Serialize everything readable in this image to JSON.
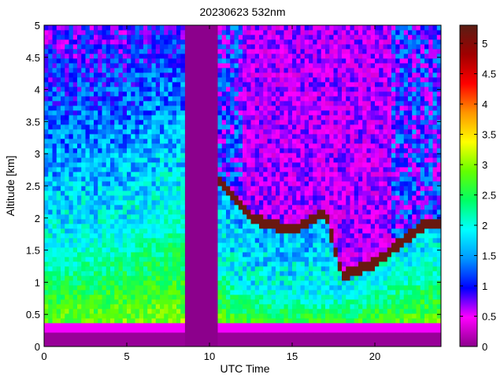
{
  "chart_data": {
    "type": "heatmap",
    "title": "20230623 532nm",
    "xlabel": "UTC Time",
    "ylabel": "Altitude [km]",
    "xlim": [
      0,
      24
    ],
    "ylim": [
      0,
      5
    ],
    "x_ticks": [
      "0",
      "5",
      "10",
      "15",
      "20"
    ],
    "y_ticks": [
      "0",
      "0.5",
      "1",
      "1.5",
      "2",
      "2.5",
      "3",
      "3.5",
      "4",
      "4.5",
      "5"
    ],
    "colorbar": {
      "min": 0,
      "max": 5.3,
      "ticks": [
        "0",
        "0.5",
        "1",
        "1.5",
        "2",
        "2.5",
        "3",
        "3.5",
        "4",
        "4.5",
        "5"
      ],
      "colormap": [
        "#8c008c",
        "#ff00ff",
        "#0000ff",
        "#0096ff",
        "#00ffff",
        "#00ff64",
        "#64ff00",
        "#ffff00",
        "#ff9600",
        "#ff0000",
        "#a00000",
        "#5a1e14"
      ]
    },
    "no_data_intervals_utc": [
      [
        8.4,
        9.8
      ],
      [
        9.8,
        10.4
      ]
    ],
    "features": {
      "surface_layer_top_km": 0.35,
      "aerosol_layer_top_km": {
        "0": 1.7,
        "5": 2.0,
        "8": 2.5,
        "12": 1.0,
        "18": 0.9,
        "23": 1.5
      },
      "cloud_base_km": {
        "10.5": 2.6,
        "12.5": 2.0,
        "15": 1.8,
        "17": 2.1,
        "18": 1.1,
        "20": 1.3,
        "23": 1.9
      }
    },
    "grid": false,
    "colorbar_position": "right"
  }
}
